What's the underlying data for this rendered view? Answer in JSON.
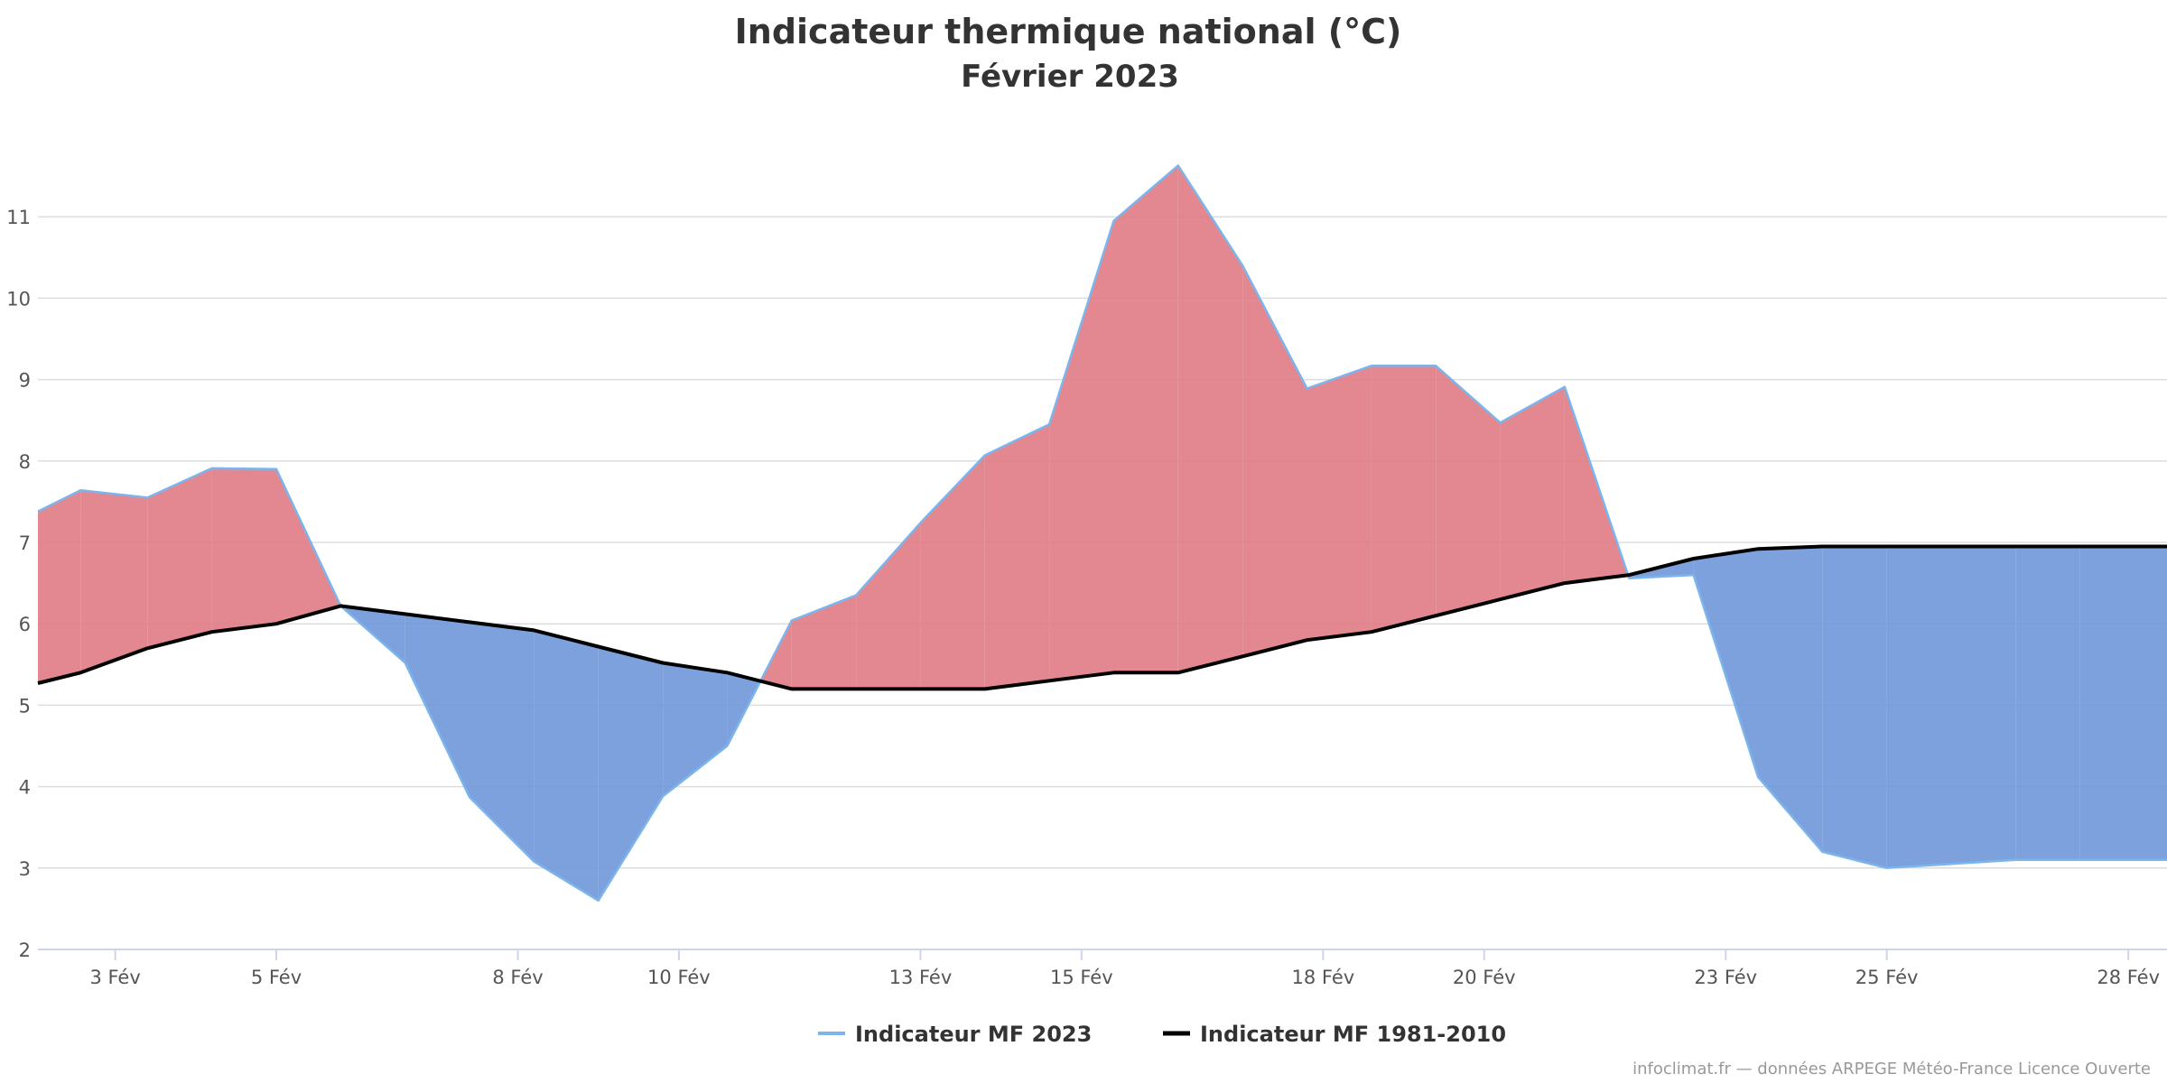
{
  "chart_data": {
    "type": "area",
    "title": "Indicateur thermique national (°C)",
    "subtitle": "Février 2023",
    "xlabel": "",
    "ylabel": "",
    "x_range": [
      2.04,
      28.48
    ],
    "ylim": [
      2,
      12
    ],
    "y_ticks": [
      2,
      3,
      4,
      5,
      6,
      7,
      8,
      9,
      10,
      11
    ],
    "x_ticks": [
      {
        "day": 3,
        "label": "3 Fév"
      },
      {
        "day": 5,
        "label": "5 Fév"
      },
      {
        "day": 8,
        "label": "8 Fév"
      },
      {
        "day": 10,
        "label": "10 Fév"
      },
      {
        "day": 13,
        "label": "13 Fév"
      },
      {
        "day": 15,
        "label": "15 Fév"
      },
      {
        "day": 18,
        "label": "18 Fév"
      },
      {
        "day": 20,
        "label": "20 Fév"
      },
      {
        "day": 23,
        "label": "23 Fév"
      },
      {
        "day": 25,
        "label": "25 Fév"
      },
      {
        "day": 28,
        "label": "28 Fév"
      }
    ],
    "grid": true,
    "legend_position": "bottom-center",
    "fill_colors": {
      "above_normal": "#e07b84",
      "below_normal": "#6f97d9"
    },
    "series": [
      {
        "name": "Indicateur MF 2023",
        "color": "#7cb5ec",
        "x": [
          2.04,
          2.57,
          3.4,
          4.2,
          5.0,
          5.8,
          6.6,
          7.4,
          8.2,
          9.0,
          9.8,
          10.6,
          11.4,
          12.2,
          13.0,
          13.8,
          14.6,
          15.4,
          16.2,
          17.0,
          17.8,
          18.6,
          19.4,
          20.2,
          21.0,
          21.8,
          22.6,
          23.4,
          24.2,
          25.0,
          25.8,
          26.6,
          27.4,
          28.2,
          28.48
        ],
        "y": [
          7.38,
          7.64,
          7.55,
          7.91,
          7.9,
          6.22,
          5.52,
          3.87,
          3.08,
          2.6,
          3.88,
          4.5,
          6.04,
          6.35,
          7.24,
          8.07,
          8.45,
          10.95,
          11.63,
          10.4,
          8.89,
          9.17,
          9.17,
          8.47,
          8.91,
          6.56,
          6.6,
          4.12,
          3.2,
          3.0,
          3.05,
          3.1,
          3.1,
          3.1,
          3.1
        ]
      },
      {
        "name": "Indicateur MF 1981-2010",
        "color": "#000000",
        "x": [
          2.04,
          2.57,
          3.4,
          4.2,
          5.0,
          5.8,
          6.6,
          7.4,
          8.2,
          9.0,
          9.8,
          10.6,
          11.4,
          12.2,
          13.0,
          13.8,
          14.6,
          15.4,
          16.2,
          17.0,
          17.8,
          18.6,
          19.4,
          20.2,
          21.0,
          21.8,
          22.6,
          23.4,
          24.2,
          25.0,
          25.8,
          26.6,
          27.4,
          28.2,
          28.48
        ],
        "y": [
          5.27,
          5.4,
          5.7,
          5.9,
          6.0,
          6.22,
          6.12,
          6.02,
          5.92,
          5.72,
          5.52,
          5.4,
          5.2,
          5.2,
          5.2,
          5.2,
          5.3,
          5.4,
          5.4,
          5.6,
          5.8,
          5.9,
          6.1,
          6.3,
          6.5,
          6.6,
          6.8,
          6.92,
          6.95,
          6.95,
          6.95,
          6.95,
          6.95,
          6.95,
          6.95
        ]
      }
    ]
  },
  "credits": "infoclimat.fr — données ARPEGE Météo-France Licence Ouverte"
}
